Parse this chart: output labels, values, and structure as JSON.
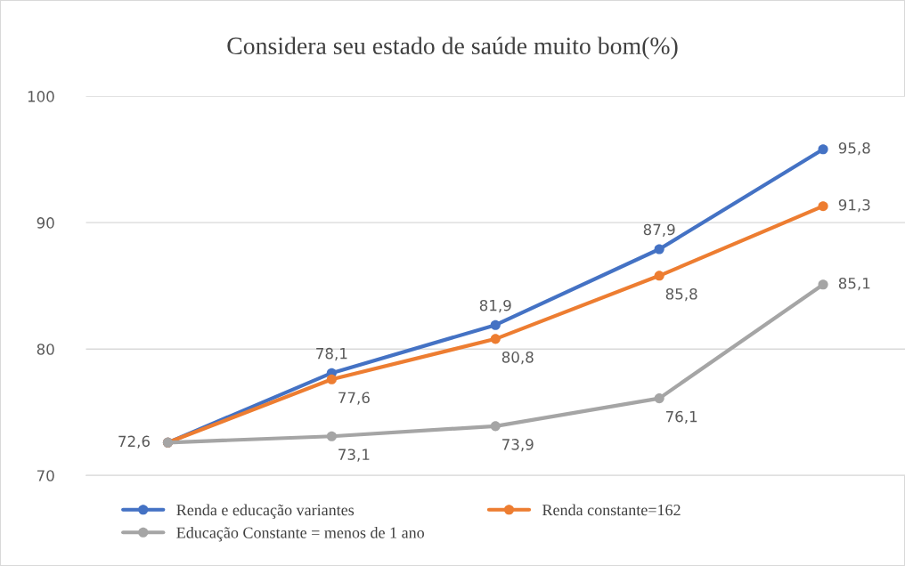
{
  "chart_data": {
    "type": "line",
    "title": "Considera seu estado de saúde muito bom(%)",
    "categories": [
      null,
      null,
      null,
      null,
      null
    ],
    "series": [
      {
        "name": "Renda e educação variantes",
        "color": "#4472c4",
        "values": [
          72.6,
          78.1,
          81.9,
          87.9,
          95.8
        ],
        "value_labels": [
          null,
          "78,1",
          "81,9",
          "87,9",
          "95,8"
        ]
      },
      {
        "name": "Renda constante=162",
        "color": "#ed7d31",
        "values": [
          72.6,
          77.6,
          80.8,
          85.8,
          91.3
        ],
        "value_labels": [
          null,
          "77,6",
          "80,8",
          "85,8",
          "91,3"
        ]
      },
      {
        "name": "Educação Constante = menos de 1 ano",
        "color": "#a5a5a5",
        "values": [
          72.6,
          73.1,
          73.9,
          76.1,
          85.1
        ],
        "value_labels": [
          "72,6",
          "73,1",
          "73,9",
          "76,1",
          "85,1"
        ]
      }
    ],
    "ylim": [
      70,
      100
    ],
    "yticks": [
      70,
      80,
      90,
      100
    ],
    "grid": "y",
    "legend": "bottom",
    "marker": "circle",
    "line_style": "solid"
  }
}
